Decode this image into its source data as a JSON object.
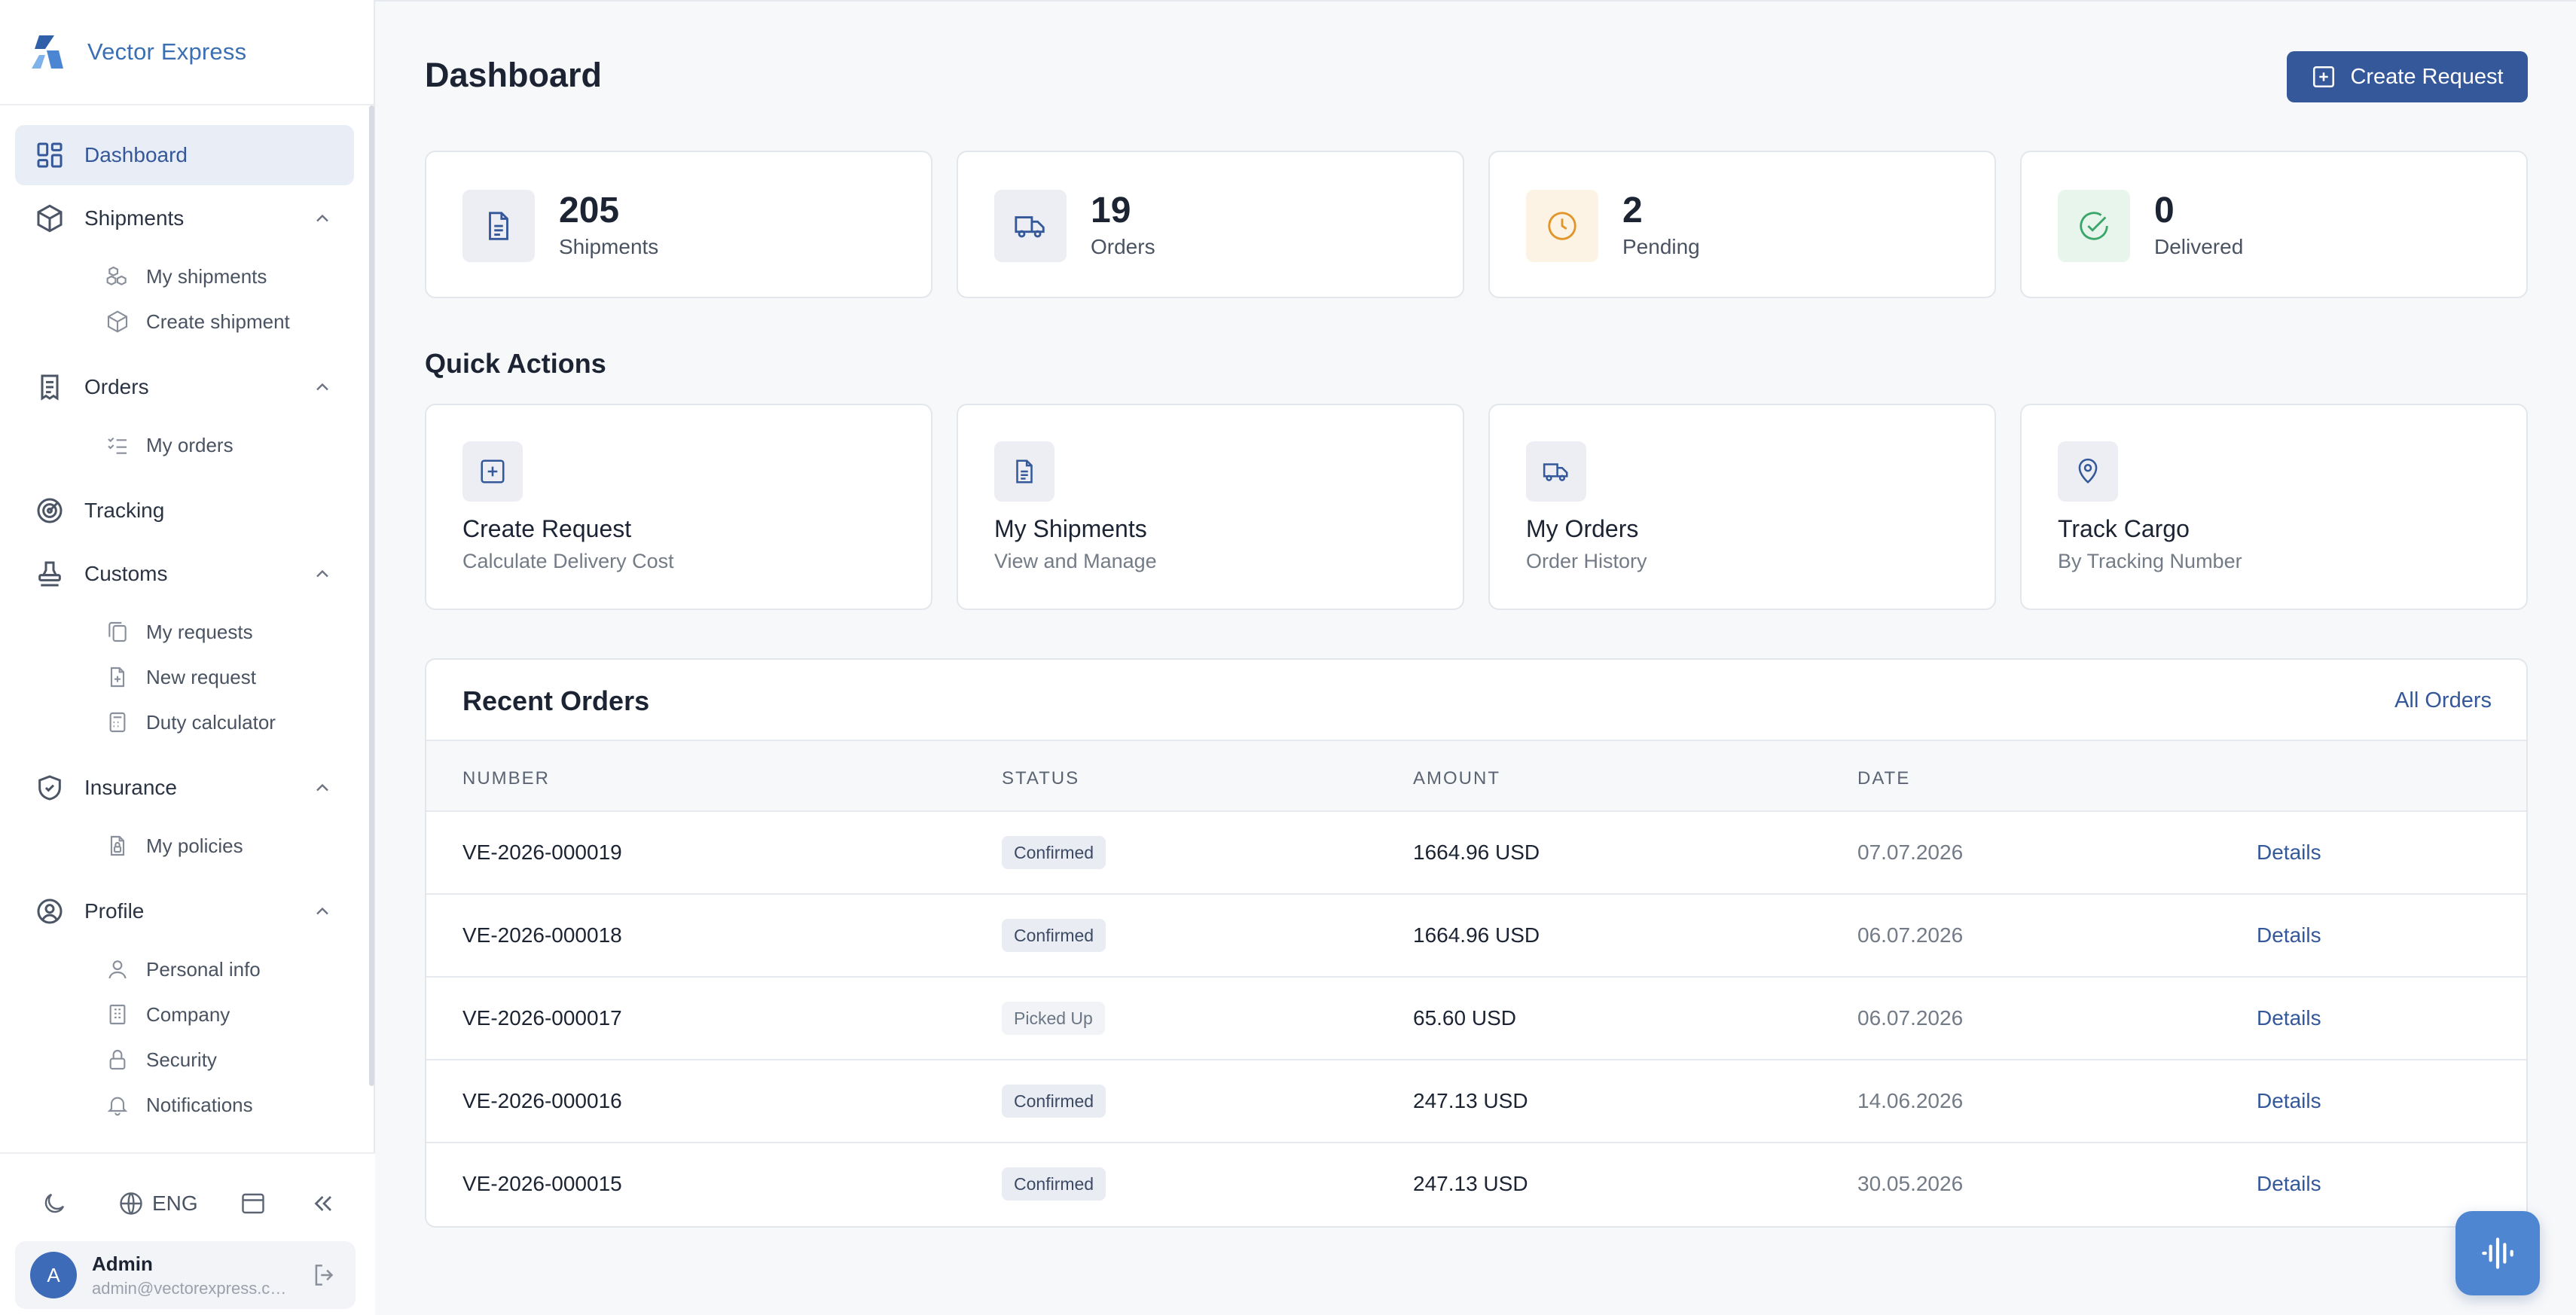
{
  "brand": {
    "name": "Vector Express"
  },
  "sidebar": {
    "items": [
      {
        "label": "Dashboard",
        "icon": "dashboard-icon"
      },
      {
        "label": "Shipments",
        "icon": "package-icon",
        "children": [
          "My shipments",
          "Create shipment"
        ]
      },
      {
        "label": "Orders",
        "icon": "orders-icon",
        "children": [
          "My orders"
        ]
      },
      {
        "label": "Tracking",
        "icon": "tracking-icon"
      },
      {
        "label": "Customs",
        "icon": "stamp-icon",
        "children": [
          "My requests",
          "New request",
          "Duty calculator"
        ]
      },
      {
        "label": "Insurance",
        "icon": "shield-icon",
        "children": [
          "My policies"
        ]
      },
      {
        "label": "Profile",
        "icon": "user-circle-icon",
        "children": [
          "Personal info",
          "Company",
          "Security",
          "Notifications"
        ]
      }
    ],
    "footer": {
      "language": "ENG"
    },
    "user": {
      "initial": "A",
      "name": "Admin",
      "email": "admin@vectorexpress.com"
    }
  },
  "header": {
    "title": "Dashboard",
    "create_label": "Create Request"
  },
  "stats": [
    {
      "value": "205",
      "label": "Shipments",
      "color": "#34589a",
      "bg": "#eceef3"
    },
    {
      "value": "19",
      "label": "Orders",
      "color": "#34589a",
      "bg": "#eceef3"
    },
    {
      "value": "2",
      "label": "Pending",
      "color": "#e0962b",
      "bg": "#fdf3e4"
    },
    {
      "value": "0",
      "label": "Delivered",
      "color": "#3aa66a",
      "bg": "#e7f5ec"
    }
  ],
  "quick_actions": {
    "title": "Quick Actions",
    "items": [
      {
        "title": "Create Request",
        "subtitle": "Calculate Delivery Cost"
      },
      {
        "title": "My Shipments",
        "subtitle": "View and Manage"
      },
      {
        "title": "My Orders",
        "subtitle": "Order History"
      },
      {
        "title": "Track Cargo",
        "subtitle": "By Tracking Number"
      }
    ]
  },
  "recent_orders": {
    "title": "Recent Orders",
    "all_label": "All Orders",
    "columns": [
      "NUMBER",
      "STATUS",
      "AMOUNT",
      "DATE"
    ],
    "details_label": "Details",
    "rows": [
      {
        "number": "VE-2026-000019",
        "status": "Confirmed",
        "amount": "1664.96 USD",
        "date": "07.07.2026"
      },
      {
        "number": "VE-2026-000018",
        "status": "Confirmed",
        "amount": "1664.96 USD",
        "date": "06.07.2026"
      },
      {
        "number": "VE-2026-000017",
        "status": "Picked Up",
        "amount": "65.60 USD",
        "date": "06.07.2026"
      },
      {
        "number": "VE-2026-000016",
        "status": "Confirmed",
        "amount": "247.13 USD",
        "date": "14.06.2026"
      },
      {
        "number": "VE-2026-000015",
        "status": "Confirmed",
        "amount": "247.13 USD",
        "date": "30.05.2026"
      }
    ]
  }
}
